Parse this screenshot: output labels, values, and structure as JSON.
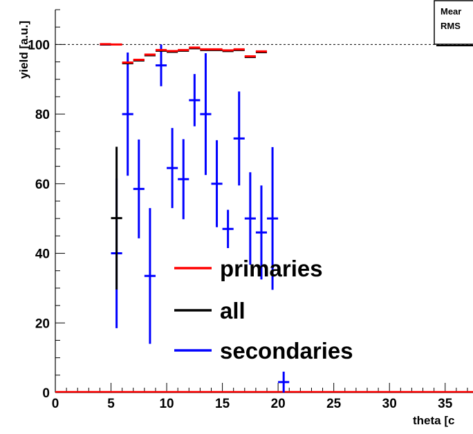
{
  "chart_data": {
    "type": "scatter",
    "title": "",
    "xlabel": "theta [c",
    "ylabel": "yield [a.u.]",
    "xlim": [
      0,
      37.5
    ],
    "ylim": [
      0,
      110
    ],
    "x_ticks": [
      0,
      5,
      10,
      15,
      20,
      25,
      30,
      35
    ],
    "x_tick_labels": [
      "0",
      "5",
      "10",
      "15",
      "20",
      "25",
      "30",
      "35"
    ],
    "y_ticks": [
      0,
      20,
      40,
      60,
      80,
      100
    ],
    "y_tick_labels": [
      "0",
      "20",
      "40",
      "60",
      "80",
      "100"
    ],
    "reference_line": 100,
    "stats_box": [
      "Mear",
      "RMS"
    ],
    "grid": false,
    "legend_position": "bottom-center",
    "series": [
      {
        "name": "primaries",
        "color": "#ff0000",
        "points": [
          {
            "x": 4.5,
            "y": 100.1,
            "err": 0.3
          },
          {
            "x": 5.5,
            "y": 100.0,
            "err": 0.3
          },
          {
            "x": 6.5,
            "y": 94.8,
            "err": 0.3
          },
          {
            "x": 7.5,
            "y": 95.6,
            "err": 0.5
          },
          {
            "x": 8.5,
            "y": 97.1,
            "err": 0.5
          },
          {
            "x": 9.5,
            "y": 98.4,
            "err": 0.5
          },
          {
            "x": 10.5,
            "y": 98.1,
            "err": 0.5
          },
          {
            "x": 11.5,
            "y": 98.4,
            "err": 0.5
          },
          {
            "x": 12.5,
            "y": 99.1,
            "err": 0.5
          },
          {
            "x": 13.5,
            "y": 98.6,
            "err": 0.5
          },
          {
            "x": 14.5,
            "y": 98.6,
            "err": 0.5
          },
          {
            "x": 15.5,
            "y": 98.3,
            "err": 0.5
          },
          {
            "x": 16.5,
            "y": 98.6,
            "err": 0.5
          },
          {
            "x": 17.5,
            "y": 96.6,
            "err": 0.5
          },
          {
            "x": 18.5,
            "y": 98.0,
            "err": 0.5
          }
        ]
      },
      {
        "name": "all",
        "color": "#000000",
        "points": [
          {
            "x": 4.5,
            "y": 100.0,
            "err": 0.3
          },
          {
            "x": 5.5,
            "y": 50.1,
            "err": 20.5
          },
          {
            "x": 6.5,
            "y": 94.6,
            "err": 0.4
          },
          {
            "x": 7.5,
            "y": 95.4,
            "err": 0.5
          },
          {
            "x": 8.5,
            "y": 96.9,
            "err": 0.5
          },
          {
            "x": 9.5,
            "y": 98.2,
            "err": 0.5
          },
          {
            "x": 10.5,
            "y": 97.9,
            "err": 0.5
          },
          {
            "x": 11.5,
            "y": 98.2,
            "err": 0.5
          },
          {
            "x": 12.5,
            "y": 98.9,
            "err": 0.5
          },
          {
            "x": 13.5,
            "y": 98.4,
            "err": 0.5
          },
          {
            "x": 14.5,
            "y": 98.4,
            "err": 0.5
          },
          {
            "x": 15.5,
            "y": 98.1,
            "err": 0.5
          },
          {
            "x": 16.5,
            "y": 98.4,
            "err": 0.5
          },
          {
            "x": 17.5,
            "y": 96.4,
            "err": 0.5
          },
          {
            "x": 18.5,
            "y": 97.8,
            "err": 0.5
          }
        ]
      },
      {
        "name": "secondaries",
        "color": "#0000ff",
        "points": [
          {
            "x": 4.5,
            "y": 100.0,
            "err": 0.3
          },
          {
            "x": 5.5,
            "y": 40.0,
            "err": 21.5
          },
          {
            "x": 6.5,
            "y": 80.0,
            "err": 17.7
          },
          {
            "x": 7.5,
            "y": 58.5,
            "err": 14.2
          },
          {
            "x": 8.5,
            "y": 33.5,
            "err": 19.5
          },
          {
            "x": 9.5,
            "y": 94.0,
            "err": 6.0
          },
          {
            "x": 10.5,
            "y": 64.5,
            "err": 11.5
          },
          {
            "x": 11.5,
            "y": 61.3,
            "err": 11.5
          },
          {
            "x": 12.5,
            "y": 84.0,
            "err": 7.5
          },
          {
            "x": 13.5,
            "y": 80.0,
            "err": 17.5
          },
          {
            "x": 14.5,
            "y": 60.0,
            "err": 12.5
          },
          {
            "x": 15.5,
            "y": 47.0,
            "err": 5.5
          },
          {
            "x": 16.5,
            "y": 73.0,
            "err": 13.5
          },
          {
            "x": 17.5,
            "y": 50.0,
            "err": 13.3
          },
          {
            "x": 18.5,
            "y": 46.0,
            "err": 13.5
          },
          {
            "x": 19.5,
            "y": 50.0,
            "err": 20.5
          },
          {
            "x": 20.5,
            "y": 3.0,
            "err": 3.0
          }
        ]
      }
    ]
  }
}
